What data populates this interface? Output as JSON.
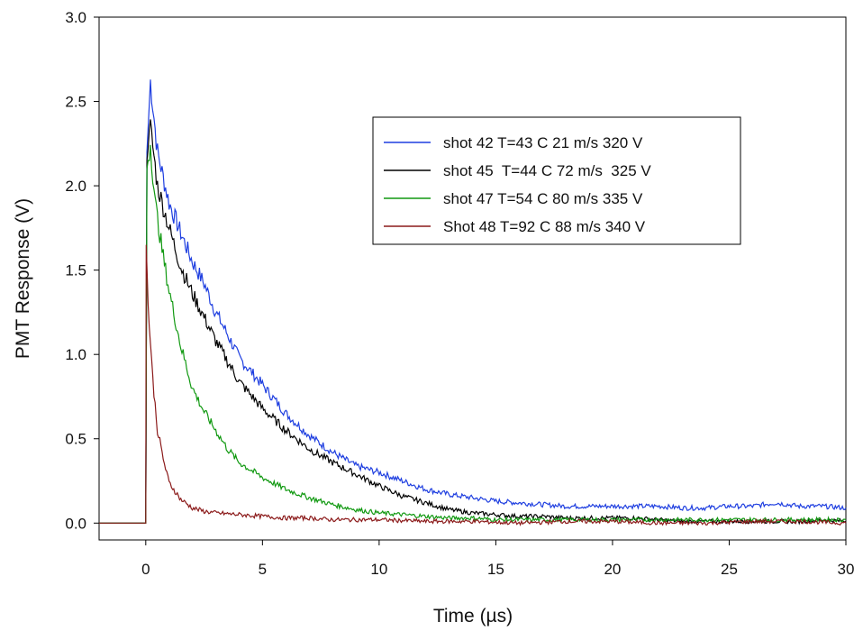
{
  "chart_data": {
    "type": "line",
    "xlabel": "Time (µs)",
    "ylabel": "PMT Response (V)",
    "xlim": [
      -2,
      30
    ],
    "ylim": [
      -0.1,
      3.0
    ],
    "xticks": [
      0,
      5,
      10,
      15,
      20,
      25,
      30
    ],
    "yticks": [
      0.0,
      0.5,
      1.0,
      1.5,
      2.0,
      2.5,
      3.0
    ],
    "xtick_labels": [
      "0",
      "5",
      "10",
      "15",
      "20",
      "25",
      "30"
    ],
    "ytick_labels": [
      "0.0",
      "0.5",
      "1.0",
      "1.5",
      "2.0",
      "2.5",
      "3.0"
    ],
    "grid": false,
    "legend_position": "upper-right",
    "series": [
      {
        "name": "shot 42 T=43 C 21 m/s 320 V",
        "color": "#1f3fe0",
        "x": [
          -2,
          0,
          0.05,
          0.2,
          0.5,
          1,
          1.5,
          2,
          2.5,
          3,
          3.5,
          4,
          5,
          6,
          7,
          8,
          9,
          10,
          11,
          12,
          13,
          14,
          15,
          16,
          17,
          18,
          19,
          20,
          21,
          22,
          23,
          24,
          25,
          26,
          27,
          28,
          29,
          30
        ],
        "y": [
          0.0,
          0.0,
          2.2,
          2.62,
          2.2,
          1.9,
          1.72,
          1.55,
          1.42,
          1.25,
          1.12,
          0.98,
          0.82,
          0.65,
          0.52,
          0.42,
          0.34,
          0.3,
          0.25,
          0.2,
          0.17,
          0.15,
          0.13,
          0.12,
          0.11,
          0.1,
          0.1,
          0.1,
          0.1,
          0.1,
          0.09,
          0.09,
          0.1,
          0.1,
          0.12,
          0.1,
          0.1,
          0.09
        ]
      },
      {
        "name": "shot 45  T=44 C 72 m/s  325 V",
        "color": "#000000",
        "x": [
          -2,
          0,
          0.05,
          0.2,
          0.5,
          1,
          1.5,
          2,
          2.5,
          3,
          3.5,
          4,
          5,
          6,
          7,
          8,
          9,
          10,
          11,
          12,
          13,
          14,
          15,
          16,
          17,
          18,
          19,
          20,
          21,
          22,
          23,
          24,
          25,
          26,
          27,
          28,
          29,
          30
        ],
        "y": [
          0.0,
          0.0,
          2.15,
          2.35,
          2.0,
          1.75,
          1.52,
          1.36,
          1.22,
          1.08,
          0.96,
          0.84,
          0.68,
          0.55,
          0.44,
          0.36,
          0.29,
          0.22,
          0.16,
          0.12,
          0.08,
          0.06,
          0.05,
          0.04,
          0.04,
          0.03,
          0.03,
          0.03,
          0.03,
          0.02,
          0.01,
          0.01,
          0.01,
          0.01,
          0.01,
          0.01,
          0.02,
          0.01
        ]
      },
      {
        "name": "shot 47 T=54 C 80 m/s 335 V",
        "color": "#119911",
        "x": [
          -2,
          0,
          0.05,
          0.2,
          0.4,
          0.7,
          1,
          1.5,
          2,
          2.5,
          3,
          3.5,
          4,
          5,
          6,
          7,
          8,
          9,
          10,
          11,
          12,
          13,
          14,
          15,
          16,
          17,
          18,
          19,
          20,
          21,
          22,
          23,
          24,
          25,
          26,
          27,
          28,
          29,
          30
        ],
        "y": [
          0.0,
          0.0,
          2.1,
          2.25,
          1.9,
          1.62,
          1.38,
          1.05,
          0.8,
          0.66,
          0.55,
          0.44,
          0.36,
          0.27,
          0.2,
          0.15,
          0.11,
          0.08,
          0.06,
          0.05,
          0.04,
          0.03,
          0.03,
          0.02,
          0.02,
          0.02,
          0.02,
          0.02,
          0.02,
          0.02,
          0.02,
          0.02,
          0.02,
          0.02,
          0.02,
          0.02,
          0.02,
          0.02,
          0.02
        ]
      },
      {
        "name": "Shot 48 T=92 C 88 m/s 340 V",
        "color": "#8b1a1a",
        "x": [
          -2,
          0,
          0.02,
          0.1,
          0.3,
          0.5,
          0.8,
          1,
          1.5,
          2,
          2.5,
          3,
          4,
          5,
          6,
          7,
          8,
          9,
          10,
          12,
          14,
          16,
          18,
          20,
          22,
          24,
          26,
          28,
          30
        ],
        "y": [
          0.0,
          0.0,
          1.65,
          1.3,
          0.85,
          0.55,
          0.35,
          0.24,
          0.14,
          0.09,
          0.07,
          0.06,
          0.05,
          0.04,
          0.03,
          0.03,
          0.02,
          0.02,
          0.02,
          0.01,
          0.01,
          0.0,
          0.01,
          0.01,
          0.0,
          0.0,
          0.01,
          0.01,
          0.0
        ]
      }
    ]
  }
}
